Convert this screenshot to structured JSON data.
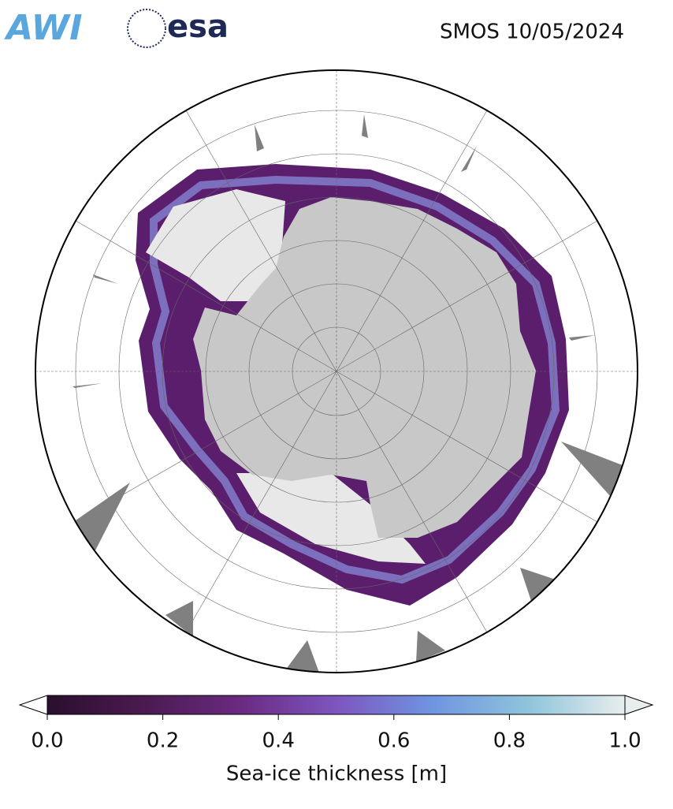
{
  "header": {
    "logo_awi": "AWI",
    "logo_esa": "esa",
    "title": "SMOS 10/05/2024"
  },
  "colorbar": {
    "label": "Sea-ice thickness [m]",
    "lim": [
      0,
      1
    ],
    "ticks": [
      {
        "value": 0,
        "label": "0.0"
      },
      {
        "value": 0.2,
        "label": "0.2"
      },
      {
        "value": 0.4,
        "label": "0.4"
      },
      {
        "value": 0.6,
        "label": "0.6"
      },
      {
        "value": 0.8,
        "label": "0.8"
      },
      {
        "value": 1,
        "label": "1.0"
      }
    ],
    "colors": [
      "#2a0f2e",
      "#4a1a50",
      "#6a2a80",
      "#7d55c0",
      "#6f95e0",
      "#8fc4dc",
      "#e8eeee"
    ]
  }
}
